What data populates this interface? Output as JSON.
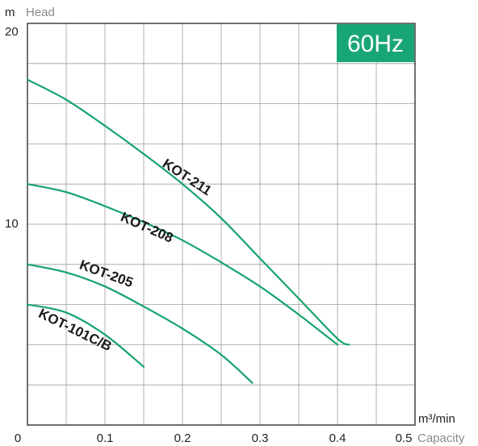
{
  "frequency_badge": "60Hz",
  "colors": {
    "curve": "#16a36b",
    "badge_bg": "#19a675",
    "grid": "#9e9e9e",
    "frame": "#333333"
  },
  "chart_data": {
    "type": "line",
    "xlabel": "Capacity",
    "x_unit": "m³/min",
    "ylabel": "Head",
    "y_unit": "m",
    "xlim": [
      0,
      0.5
    ],
    "ylim": [
      0,
      20
    ],
    "x_tick_labels": [
      "0.1",
      "0.2",
      "0.3",
      "0.4",
      "0.5"
    ],
    "y_tick_labels": [
      "0",
      "10",
      "20"
    ],
    "origin_label": "0",
    "grid": true,
    "series": [
      {
        "name": "KOT-211",
        "x": [
          0,
          0.05,
          0.1,
          0.15,
          0.2,
          0.25,
          0.3,
          0.35,
          0.4,
          0.415
        ],
        "y": [
          17.2,
          16.2,
          14.9,
          13.5,
          12.0,
          10.3,
          8.3,
          6.3,
          4.3,
          4.0
        ]
      },
      {
        "name": "KOT-208",
        "x": [
          0,
          0.05,
          0.1,
          0.15,
          0.2,
          0.25,
          0.3,
          0.35,
          0.4
        ],
        "y": [
          12.0,
          11.6,
          10.9,
          10.1,
          9.2,
          8.1,
          6.9,
          5.5,
          4.0
        ]
      },
      {
        "name": "KOT-205",
        "x": [
          0,
          0.05,
          0.1,
          0.15,
          0.2,
          0.25,
          0.29
        ],
        "y": [
          8.0,
          7.6,
          6.9,
          5.9,
          4.8,
          3.5,
          2.1
        ]
      },
      {
        "name": "KOT-101C/B",
        "x": [
          0,
          0.05,
          0.1,
          0.15
        ],
        "y": [
          6.0,
          5.6,
          4.5,
          2.9
        ]
      }
    ]
  }
}
